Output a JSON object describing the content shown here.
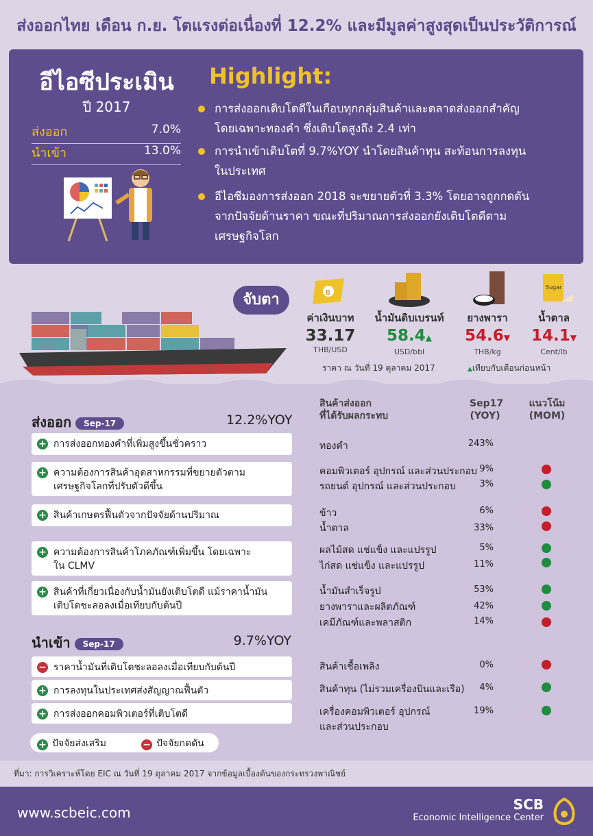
{
  "title": "ส่งออกไทย เดือน ก.ย. โตแรงต่อเนื่องที่ 12.2% และมีมูลค่าสูงสุดเป็นประวัติการณ์",
  "forecast": {
    "heading": "อีไอซีประเมิน",
    "year": "ปี 2017",
    "rows": [
      {
        "label": "ส่งออก",
        "value": "7.0%"
      },
      {
        "label": "นำเข้า",
        "value": "13.0%"
      }
    ]
  },
  "highlight": {
    "heading": "Highlight:",
    "bullets": [
      {
        "line1": "การส่งออกเติบโตดีในเกือบทุกกลุ่มสินค้าและตลาดส่งออกสำคัญ",
        "line2": "โดยเฉพาะทองคำ ซึ่งเติบโตสูงถึง 2.4 เท่า"
      },
      {
        "line1": "การนำเข้าเติบโตที่ 9.7%YOY นำโดยสินค้าทุน สะท้อนการลงทุน",
        "line2": "ในประเทศ"
      },
      {
        "line1": "อีไอซีมองการส่งออก 2018 จะขยายตัวที่ 3.3% โดยอาจถูกกดดัน",
        "line2": "จากปัจจัยด้านราคา ขณะที่ปริมาณการส่งออกยังเติบโตดีตาม",
        "line3": "เศรษฐกิจโลก"
      }
    ]
  },
  "watch": {
    "label": "จับตา",
    "items": [
      {
        "name": "ค่าเงินบาท",
        "value": "33.17",
        "unit": "THB/USD",
        "direction": "none",
        "color": "#333333",
        "icon": "baht-flag-icon"
      },
      {
        "name": "น้ำมันดิบเบรนท์",
        "value": "58.4",
        "unit": "USD/bbl",
        "direction": "up",
        "color": "#1f8c40",
        "icon": "oil-coins-icon"
      },
      {
        "name": "ยางพารา",
        "value": "54.6",
        "unit": "THB/kg",
        "direction": "down",
        "color": "#c41e2c",
        "icon": "rubber-tap-icon"
      },
      {
        "name": "น้ำตาล",
        "value": "14.1",
        "unit": "Cent/lb",
        "direction": "down",
        "color": "#c41e2c",
        "icon": "sugar-bag-icon",
        "icon_label": "Sugar"
      }
    ],
    "price_note": "ราคา ณ วันที่ 19 ตุลาคม 2017",
    "compare_note": "เทียบกับเดือนก่อนหน้า"
  },
  "table": {
    "col_products_line1": "สินค้าส่งออก",
    "col_products_line2": "ที่ได้รับผลกระทบ",
    "col_sep_line1": "Sep17",
    "col_sep_line2": "(YOY)",
    "col_trend_line1": "แนวโน้ม",
    "col_trend_line2": "(MOM)"
  },
  "exports": {
    "title": "ส่งออก",
    "badge": "Sep-17",
    "value": "12.2%YOY",
    "factors": [
      {
        "sign": "+",
        "line1": "การส่งออกทองคำที่เพิ่มสูงขึ้นชั่วคราว",
        "line2": "",
        "products": [
          {
            "name": "ทองคำ",
            "pct": "243%",
            "trend": "none"
          }
        ]
      },
      {
        "sign": "+",
        "line1": "ความต้องการสินค้าอุตสาหกรรมที่ขยายตัวตาม",
        "line2": "เศรษฐกิจโลกที่ปรับตัวดีขึ้น",
        "products": [
          {
            "name": "คอมพิวเตอร์ อุปกรณ์ และส่วนประกอบ",
            "pct": "9%",
            "trend": "down"
          },
          {
            "name": "รถยนต์ อุปกรณ์ และส่วนประกอบ",
            "pct": "3%",
            "trend": "up"
          }
        ]
      },
      {
        "sign": "+",
        "line1": "สินค้าเกษตรฟื้นตัวจากปัจจัยด้านปริมาณ",
        "line2": "",
        "products": [
          {
            "name": "ข้าว",
            "pct": "6%",
            "trend": "down"
          },
          {
            "name": "น้ำตาล",
            "pct": "33%",
            "trend": "down"
          }
        ]
      },
      {
        "sign": "+",
        "line1": "ความต้องการสินค้าโภคภัณฑ์เพิ่มขึ้น โดยเฉพาะ",
        "line2": "ใน CLMV",
        "products": [
          {
            "name": "ผลไม้สด แช่แข็ง และแปรรูป",
            "pct": "5%",
            "trend": "up"
          },
          {
            "name": "ไก่สด แช่แข็ง และแปรรูป",
            "pct": "11%",
            "trend": "up"
          }
        ]
      },
      {
        "sign": "+",
        "line1": "สินค้าที่เกี่ยวเนื่องกับน้ำมันยังเติบโตดี แม้ราคาน้ำมัน",
        "line2": "เติบโตชะลอลงเมื่อเทียบกับต้นปี",
        "products": [
          {
            "name": "น้ำมันสำเร็จรูป",
            "pct": "53%",
            "trend": "up"
          },
          {
            "name": "ยางพาราและผลิตภัณฑ์",
            "pct": "42%",
            "trend": "up"
          },
          {
            "name": "เคมีภัณฑ์และพลาสติก",
            "pct": "14%",
            "trend": "down"
          }
        ]
      }
    ]
  },
  "imports": {
    "title": "นำเข้า",
    "badge": "Sep-17",
    "value": "9.7%YOY",
    "factors": [
      {
        "sign": "-",
        "line1": "ราคาน้ำมันที่เติบโตชะลอลงเมื่อเทียบกับต้นปี",
        "products": [
          {
            "name": "สินค้าเชื้อเพลิง",
            "pct": "0%",
            "trend": "down"
          }
        ]
      },
      {
        "sign": "+",
        "line1": "การลงทุนในประเทศส่งสัญญาณฟื้นตัว",
        "products": [
          {
            "name": "สินค้าทุน (ไม่รวมเครื่องบินและเรือ)",
            "pct": "4%",
            "trend": "up"
          }
        ]
      },
      {
        "sign": "+",
        "line1": "การส่งออกคอมพิวเตอร์ที่เติบโตดี",
        "products": [
          {
            "name": "เครื่องคอมพิวเตอร์ อุปกรณ์",
            "name2": "และส่วนประกอบ",
            "pct": "19%",
            "trend": "up"
          }
        ]
      }
    ]
  },
  "legend": {
    "plus": "ปัจจัยส่งเสริม",
    "minus": "ปัจจัยกดดัน"
  },
  "source": "ที่มา: การวิเคราะห์โดย EIC ณ วันที่ 19 ตุลาคม 2017 จากข้อมูลเบื้องต้นของกระทรวงพาณิชย์",
  "footer": {
    "url": "www.scbeic.com",
    "brand": "SCB",
    "subbrand": "Economic Intelligence Center"
  },
  "colors": {
    "purple": "#5e4d8d",
    "gold": "#f0c22a",
    "green": "#1f8c40",
    "red": "#c41e2c"
  }
}
